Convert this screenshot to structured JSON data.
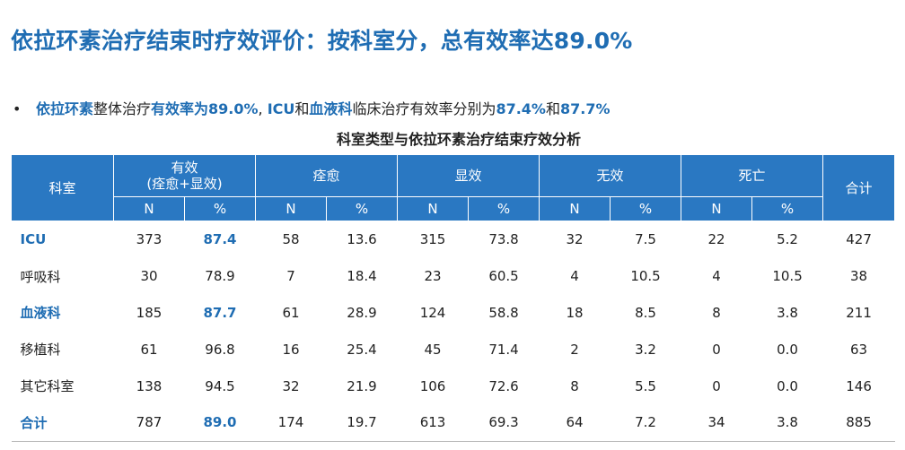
{
  "title": "依拉环素治疗结束时疗效评价：按科室分，总有效率达89.0%",
  "bullet": {
    "marker": "•",
    "parts": [
      {
        "text": "依拉环素",
        "hl": true
      },
      {
        "text": "整体治疗",
        "hl": false
      },
      {
        "text": "有效率为89.0%",
        "hl": true
      },
      {
        "text": ", ",
        "hl": false
      },
      {
        "text": "ICU",
        "hl": true
      },
      {
        "text": "和",
        "hl": false
      },
      {
        "text": "血液科",
        "hl": true
      },
      {
        "text": "临床治疗有效率分别为",
        "hl": false
      },
      {
        "text": "87.4%",
        "hl": true
      },
      {
        "text": "和",
        "hl": false
      },
      {
        "text": "87.7%",
        "hl": true
      }
    ]
  },
  "table": {
    "caption": "科室类型与依拉环素治疗结束疗效分析",
    "header": {
      "dept": "科室",
      "effective_line1": "有效",
      "effective_line2": "(痊愈+显效)",
      "cured": "痊愈",
      "marked": "显效",
      "ineffective": "无效",
      "death": "死亡",
      "total": "合计",
      "n": "N",
      "pct": "%"
    },
    "rows": [
      {
        "dept": "ICU",
        "dept_hl": true,
        "eff_n": "373",
        "eff_pct": "87.4",
        "eff_hl": true,
        "cure_n": "58",
        "cure_pct": "13.6",
        "mark_n": "315",
        "mark_pct": "73.8",
        "inef_n": "32",
        "inef_pct": "7.5",
        "death_n": "22",
        "death_pct": "5.2",
        "total": "427"
      },
      {
        "dept": "呼吸科",
        "dept_hl": false,
        "eff_n": "30",
        "eff_pct": "78.9",
        "eff_hl": false,
        "cure_n": "7",
        "cure_pct": "18.4",
        "mark_n": "23",
        "mark_pct": "60.5",
        "inef_n": "4",
        "inef_pct": "10.5",
        "death_n": "4",
        "death_pct": "10.5",
        "total": "38"
      },
      {
        "dept": "血液科",
        "dept_hl": true,
        "eff_n": "185",
        "eff_pct": "87.7",
        "eff_hl": true,
        "cure_n": "61",
        "cure_pct": "28.9",
        "mark_n": "124",
        "mark_pct": "58.8",
        "inef_n": "18",
        "inef_pct": "8.5",
        "death_n": "8",
        "death_pct": "3.8",
        "total": "211"
      },
      {
        "dept": "移植科",
        "dept_hl": false,
        "eff_n": "61",
        "eff_pct": "96.8",
        "eff_hl": false,
        "cure_n": "16",
        "cure_pct": "25.4",
        "mark_n": "45",
        "mark_pct": "71.4",
        "inef_n": "2",
        "inef_pct": "3.2",
        "death_n": "0",
        "death_pct": "0.0",
        "total": "63"
      },
      {
        "dept": "其它科室",
        "dept_hl": false,
        "eff_n": "138",
        "eff_pct": "94.5",
        "eff_hl": false,
        "cure_n": "32",
        "cure_pct": "21.9",
        "mark_n": "106",
        "mark_pct": "72.6",
        "inef_n": "8",
        "inef_pct": "5.5",
        "death_n": "0",
        "death_pct": "0.0",
        "total": "146"
      },
      {
        "dept": "合计",
        "dept_hl": true,
        "eff_n": "787",
        "eff_pct": "89.0",
        "eff_hl": true,
        "cure_n": "174",
        "cure_pct": "19.7",
        "mark_n": "613",
        "mark_pct": "69.3",
        "inef_n": "64",
        "inef_pct": "7.2",
        "death_n": "34",
        "death_pct": "3.8",
        "total": "885"
      }
    ]
  },
  "colors": {
    "accent": "#1f6db3",
    "header_bg": "#2a78c2"
  }
}
